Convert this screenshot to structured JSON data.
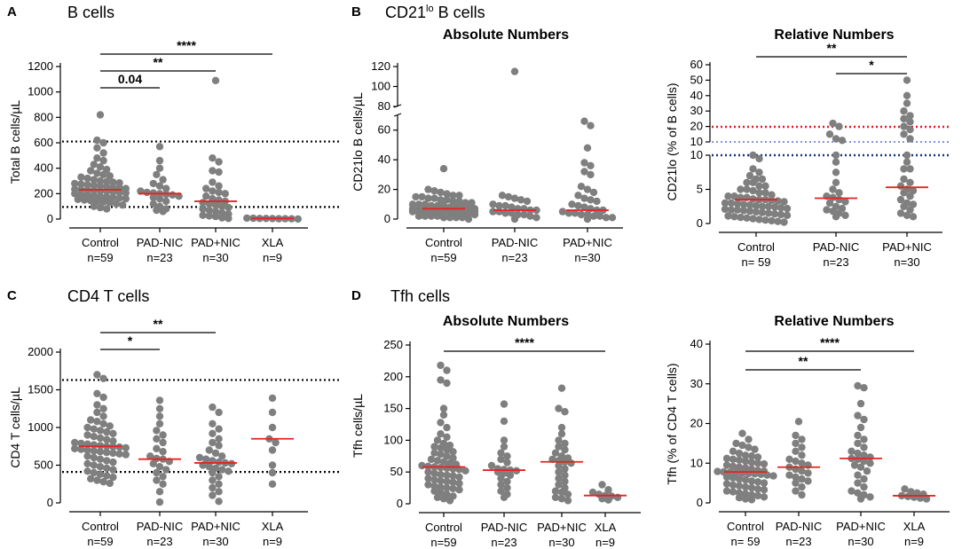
{
  "figure_labels": {
    "A": "A",
    "A_title": "B cells",
    "B": "B",
    "B_title_main": "CD21",
    "B_title_sup": "lo",
    "B_title_rest": " B cells",
    "C": "C",
    "C_title": "CD4 T cells",
    "D": "D",
    "D_title": "Tfh cells",
    "absolute": "Absolute Numbers",
    "relative": "Relative Numbers"
  },
  "chart_data": [
    {
      "id": "A",
      "type": "scatter",
      "subtype": "dot-plot",
      "ylabel": "Total B cells/µL",
      "ylim": [
        0,
        1200
      ],
      "yticks": [
        "0",
        "200",
        "400",
        "600",
        "800",
        "1000",
        "1200"
      ],
      "categories": [
        "Control",
        "PAD-NIC",
        "PAD+NIC",
        "XLA"
      ],
      "ns": [
        "n=59",
        "n=23",
        "n=30",
        "n=9"
      ],
      "medians": [
        230,
        200,
        140,
        5
      ],
      "reference_lines": [
        610,
        95
      ],
      "reference_style": "black-dotted",
      "groups": [
        {
          "name": "Control",
          "values": [
            820,
            620,
            600,
            560,
            520,
            480,
            460,
            430,
            410,
            390,
            380,
            360,
            350,
            340,
            330,
            320,
            310,
            300,
            295,
            290,
            285,
            280,
            275,
            270,
            265,
            260,
            255,
            250,
            245,
            240,
            235,
            230,
            228,
            225,
            222,
            220,
            215,
            210,
            205,
            200,
            195,
            190,
            185,
            180,
            175,
            170,
            165,
            160,
            155,
            150,
            145,
            140,
            135,
            130,
            120,
            110,
            100,
            90,
            80
          ]
        },
        {
          "name": "PAD-NIC",
          "values": [
            570,
            460,
            400,
            350,
            310,
            280,
            260,
            240,
            220,
            210,
            205,
            200,
            195,
            190,
            180,
            170,
            160,
            140,
            120,
            100,
            80,
            70,
            60
          ]
        },
        {
          "name": "PAD+NIC",
          "values": [
            1090,
            480,
            450,
            380,
            370,
            290,
            260,
            240,
            220,
            210,
            200,
            180,
            160,
            150,
            140,
            130,
            120,
            110,
            100,
            90,
            80,
            70,
            60,
            50,
            40,
            30,
            25,
            20,
            10,
            5
          ]
        },
        {
          "name": "XLA",
          "values": [
            8,
            6,
            5,
            5,
            4,
            3,
            3,
            2,
            1
          ]
        }
      ],
      "significance": [
        {
          "from": 0,
          "to": 3,
          "label": "****"
        },
        {
          "from": 0,
          "to": 2,
          "label": "**"
        },
        {
          "from": 0,
          "to": 1,
          "label": "0.04"
        }
      ]
    },
    {
      "id": "B1",
      "type": "scatter",
      "subtype": "dot-plot",
      "ylabel": "CD21lo B cells/µL",
      "ylim": [
        0,
        120
      ],
      "axis_break": [
        70,
        80
      ],
      "yticks": [
        "0",
        "20",
        "40",
        "60",
        "80",
        "100",
        "120"
      ],
      "categories": [
        "Control",
        "PAD-NIC",
        "PAD+NIC"
      ],
      "ns": [
        "n=59",
        "n=23",
        "n=30"
      ],
      "medians": [
        7,
        6,
        6
      ],
      "groups": [
        {
          "name": "Control",
          "values": [
            34,
            20,
            19,
            18,
            17,
            16,
            16,
            15,
            15,
            14,
            14,
            13,
            13,
            12,
            12,
            11,
            11,
            10,
            10,
            10,
            9,
            9,
            9,
            8,
            8,
            8,
            8,
            7,
            7,
            7,
            7,
            7,
            6,
            6,
            6,
            6,
            6,
            5,
            5,
            5,
            5,
            5,
            4,
            4,
            4,
            4,
            3,
            3,
            3,
            3,
            2,
            2,
            2,
            2,
            1,
            1,
            1,
            1,
            0
          ]
        },
        {
          "name": "PAD-NIC",
          "values": [
            115,
            16,
            15,
            14,
            13,
            12,
            10,
            9,
            9,
            8,
            7,
            7,
            6,
            6,
            5,
            5,
            4,
            4,
            3,
            3,
            2,
            1,
            0
          ]
        },
        {
          "name": "PAD+NIC",
          "values": [
            66,
            63,
            48,
            38,
            36,
            32,
            30,
            22,
            20,
            18,
            16,
            14,
            13,
            12,
            10,
            9,
            8,
            7,
            6,
            6,
            5,
            4,
            4,
            3,
            3,
            2,
            2,
            1,
            1,
            0
          ]
        }
      ]
    },
    {
      "id": "B2",
      "type": "scatter",
      "subtype": "dot-plot",
      "ylabel": "CD21lo (% of B cells)",
      "yticks_lower": [
        "0",
        "5",
        "10"
      ],
      "yticks_upper": [
        "10",
        "20",
        "30",
        "40",
        "50",
        "60"
      ],
      "categories": [
        "Control",
        "PAD-NIC",
        "PAD+NIC"
      ],
      "ns": [
        "n= 59",
        "n=23",
        "n=30"
      ],
      "medians": [
        3.5,
        3.7,
        5.3
      ],
      "reference_lines": [
        {
          "value": 20,
          "color": "#e02020",
          "style": "dotted"
        },
        {
          "value": 10,
          "color": "#2040a0",
          "style": "dotted"
        },
        {
          "value": 10,
          "color": "#1a3a8a",
          "style": "dotted-thick"
        }
      ],
      "groups": [
        {
          "name": "Control",
          "values": [
            10,
            9.5,
            8,
            7.5,
            7,
            6.5,
            6.5,
            6,
            6,
            5.5,
            5.5,
            5,
            5,
            4.8,
            4.5,
            4.5,
            4.2,
            4,
            4,
            3.8,
            3.8,
            3.6,
            3.5,
            3.5,
            3.4,
            3.3,
            3.2,
            3,
            3,
            2.9,
            2.8,
            2.7,
            2.6,
            2.5,
            2.5,
            2.4,
            2.3,
            2.2,
            2.1,
            2,
            2,
            1.9,
            1.8,
            1.7,
            1.6,
            1.5,
            1.4,
            1.3,
            1.2,
            1.1,
            1,
            0.9,
            0.8,
            0.7,
            0.6,
            0.5,
            0.4,
            0.3,
            0.2
          ]
        },
        {
          "name": "PAD-NIC",
          "values": [
            22,
            20,
            15,
            12,
            11,
            10,
            9,
            7.5,
            6,
            5,
            4.5,
            4,
            3.8,
            3.5,
            3.2,
            3,
            2.5,
            2.2,
            2,
            1.8,
            1.5,
            1.2,
            1
          ]
        },
        {
          "name": "PAD+NIC",
          "values": [
            50,
            40,
            35,
            30,
            27,
            25,
            23,
            20,
            18,
            15,
            12,
            10,
            9,
            8,
            8,
            6.5,
            6,
            5.5,
            5,
            4.8,
            4.5,
            4,
            3.5,
            3,
            2.8,
            2.5,
            2,
            1.5,
            1.2,
            1
          ]
        }
      ],
      "significance": [
        {
          "from": 0,
          "to": 2,
          "label": "**"
        },
        {
          "from": 1,
          "to": 2,
          "label": "*"
        }
      ]
    },
    {
      "id": "C",
      "type": "scatter",
      "subtype": "dot-plot",
      "ylabel": "CD4 T cells/µL",
      "ylim": [
        0,
        2000
      ],
      "yticks": [
        "0",
        "500",
        "1000",
        "1500",
        "2000"
      ],
      "categories": [
        "Control",
        "PAD-NIC",
        "PAD+NIC",
        "XLA"
      ],
      "ns": [
        "n=59",
        "n=23",
        "n=30",
        "n=9"
      ],
      "medians": [
        750,
        580,
        530,
        850
      ],
      "reference_lines": [
        1630,
        410
      ],
      "reference_style": "black-dotted",
      "groups": [
        {
          "name": "Control",
          "values": [
            1700,
            1650,
            1450,
            1400,
            1300,
            1250,
            1200,
            1150,
            1100,
            1080,
            1050,
            1020,
            1000,
            980,
            960,
            940,
            920,
            900,
            880,
            860,
            840,
            820,
            800,
            790,
            780,
            770,
            760,
            750,
            745,
            740,
            730,
            720,
            710,
            700,
            690,
            680,
            670,
            660,
            650,
            640,
            620,
            600,
            580,
            560,
            540,
            520,
            500,
            480,
            460,
            440,
            420,
            400,
            380,
            360,
            340,
            320,
            300,
            280,
            260
          ]
        },
        {
          "name": "PAD-NIC",
          "values": [
            1360,
            1250,
            1150,
            1050,
            960,
            900,
            850,
            800,
            720,
            680,
            620,
            590,
            580,
            550,
            520,
            480,
            440,
            400,
            350,
            300,
            250,
            150,
            10
          ]
        },
        {
          "name": "PAD+NIC",
          "values": [
            1270,
            1200,
            1050,
            980,
            920,
            850,
            800,
            760,
            700,
            660,
            620,
            600,
            580,
            560,
            540,
            530,
            520,
            500,
            480,
            460,
            440,
            420,
            400,
            350,
            300,
            250,
            200,
            150,
            100,
            20
          ]
        },
        {
          "name": "XLA",
          "values": [
            1390,
            1200,
            1000,
            850,
            800,
            700,
            500,
            400,
            250
          ]
        }
      ],
      "significance": [
        {
          "from": 0,
          "to": 2,
          "label": "**"
        },
        {
          "from": 0,
          "to": 1,
          "label": "*"
        }
      ]
    },
    {
      "id": "D1",
      "type": "scatter",
      "subtype": "dot-plot",
      "ylabel": "Tfh cells/µL",
      "ylim": [
        0,
        250
      ],
      "yticks": [
        "0",
        "50",
        "100",
        "150",
        "200",
        "250"
      ],
      "categories": [
        "Control",
        "PAD-NIC",
        "PAD+NIC",
        "XLA"
      ],
      "ns": [
        "n=59",
        "n=23",
        "n=30",
        "n=9"
      ],
      "medians": [
        58,
        53,
        66,
        13
      ],
      "groups": [
        {
          "name": "Control",
          "values": [
            218,
            210,
            195,
            190,
            150,
            140,
            128,
            120,
            110,
            105,
            100,
            95,
            92,
            90,
            88,
            85,
            82,
            80,
            78,
            75,
            72,
            70,
            68,
            66,
            64,
            62,
            60,
            59,
            58,
            57,
            56,
            55,
            54,
            52,
            50,
            48,
            46,
            45,
            44,
            42,
            40,
            38,
            36,
            35,
            34,
            32,
            30,
            28,
            26,
            25,
            24,
            22,
            20,
            18,
            15,
            12,
            10,
            8,
            5
          ]
        },
        {
          "name": "PAD-NIC",
          "values": [
            157,
            130,
            100,
            90,
            80,
            75,
            70,
            65,
            60,
            55,
            54,
            53,
            52,
            50,
            48,
            45,
            40,
            35,
            30,
            25,
            20,
            15,
            10
          ]
        },
        {
          "name": "PAD+NIC",
          "values": [
            182,
            150,
            145,
            120,
            110,
            100,
            95,
            90,
            85,
            80,
            75,
            72,
            70,
            68,
            66,
            64,
            60,
            55,
            50,
            45,
            40,
            35,
            30,
            25,
            20,
            18,
            15,
            10,
            8,
            5
          ]
        },
        {
          "name": "XLA",
          "values": [
            30,
            22,
            18,
            15,
            13,
            12,
            10,
            8,
            6
          ]
        }
      ],
      "significance": [
        {
          "from": 0,
          "to": 3,
          "label": "****"
        }
      ]
    },
    {
      "id": "D2",
      "type": "scatter",
      "subtype": "dot-plot",
      "ylabel": "Tfh (% of CD4 T cells)",
      "ylim": [
        0,
        40
      ],
      "yticks": [
        "0",
        "10",
        "20",
        "30",
        "40"
      ],
      "categories": [
        "Control",
        "PAD-NIC",
        "PAD+NIC",
        "XLA"
      ],
      "ns": [
        "n= 59",
        "n=23",
        "n=30",
        "n=9"
      ],
      "medians": [
        7.8,
        9.0,
        11.2,
        1.8
      ],
      "groups": [
        {
          "name": "Control",
          "values": [
            17.5,
            16,
            15,
            14.5,
            14,
            13.5,
            13,
            12.5,
            12,
            11.8,
            11.5,
            11.2,
            11,
            10.8,
            10.5,
            10.2,
            10,
            9.8,
            9.5,
            9.2,
            9,
            8.8,
            8.5,
            8.2,
            8,
            7.9,
            7.8,
            7.7,
            7.6,
            7.5,
            7.4,
            7.3,
            7.2,
            7,
            6.8,
            6.5,
            6.3,
            6,
            5.8,
            5.5,
            5.3,
            5,
            4.8,
            4.5,
            4.3,
            4,
            3.8,
            3.5,
            3.3,
            3,
            2.8,
            2.5,
            2.3,
            2,
            1.8,
            1.5,
            1.3,
            1,
            0.8
          ]
        },
        {
          "name": "PAD-NIC",
          "values": [
            20.5,
            17,
            16,
            15,
            14,
            13,
            12,
            11,
            10.5,
            10,
            9.5,
            9,
            8.5,
            8,
            7.5,
            7,
            6.5,
            6,
            5.5,
            5,
            4,
            3,
            2
          ]
        },
        {
          "name": "PAD+NIC",
          "values": [
            29.5,
            29,
            25,
            22,
            21,
            19,
            17,
            16,
            15,
            14,
            13,
            12.5,
            12,
            11.5,
            11.2,
            11,
            10.5,
            10,
            9.5,
            9,
            8,
            7,
            6,
            5,
            4,
            3,
            2.5,
            2,
            1.5,
            1
          ]
        },
        {
          "name": "XLA",
          "values": [
            3.5,
            2.8,
            2.5,
            2.2,
            1.8,
            1.6,
            1.4,
            1.2,
            1
          ]
        }
      ],
      "significance": [
        {
          "from": 0,
          "to": 3,
          "label": "****"
        },
        {
          "from": 0,
          "to": 2,
          "label": "**"
        }
      ]
    }
  ],
  "colors": {
    "dot": "#7f7f7f",
    "median": "#e8221e",
    "axis": "#000000",
    "ref_black": "#000000",
    "ref_red": "#e02020",
    "ref_blue_light": "#3050c0",
    "ref_blue_dark": "#1a3580"
  }
}
